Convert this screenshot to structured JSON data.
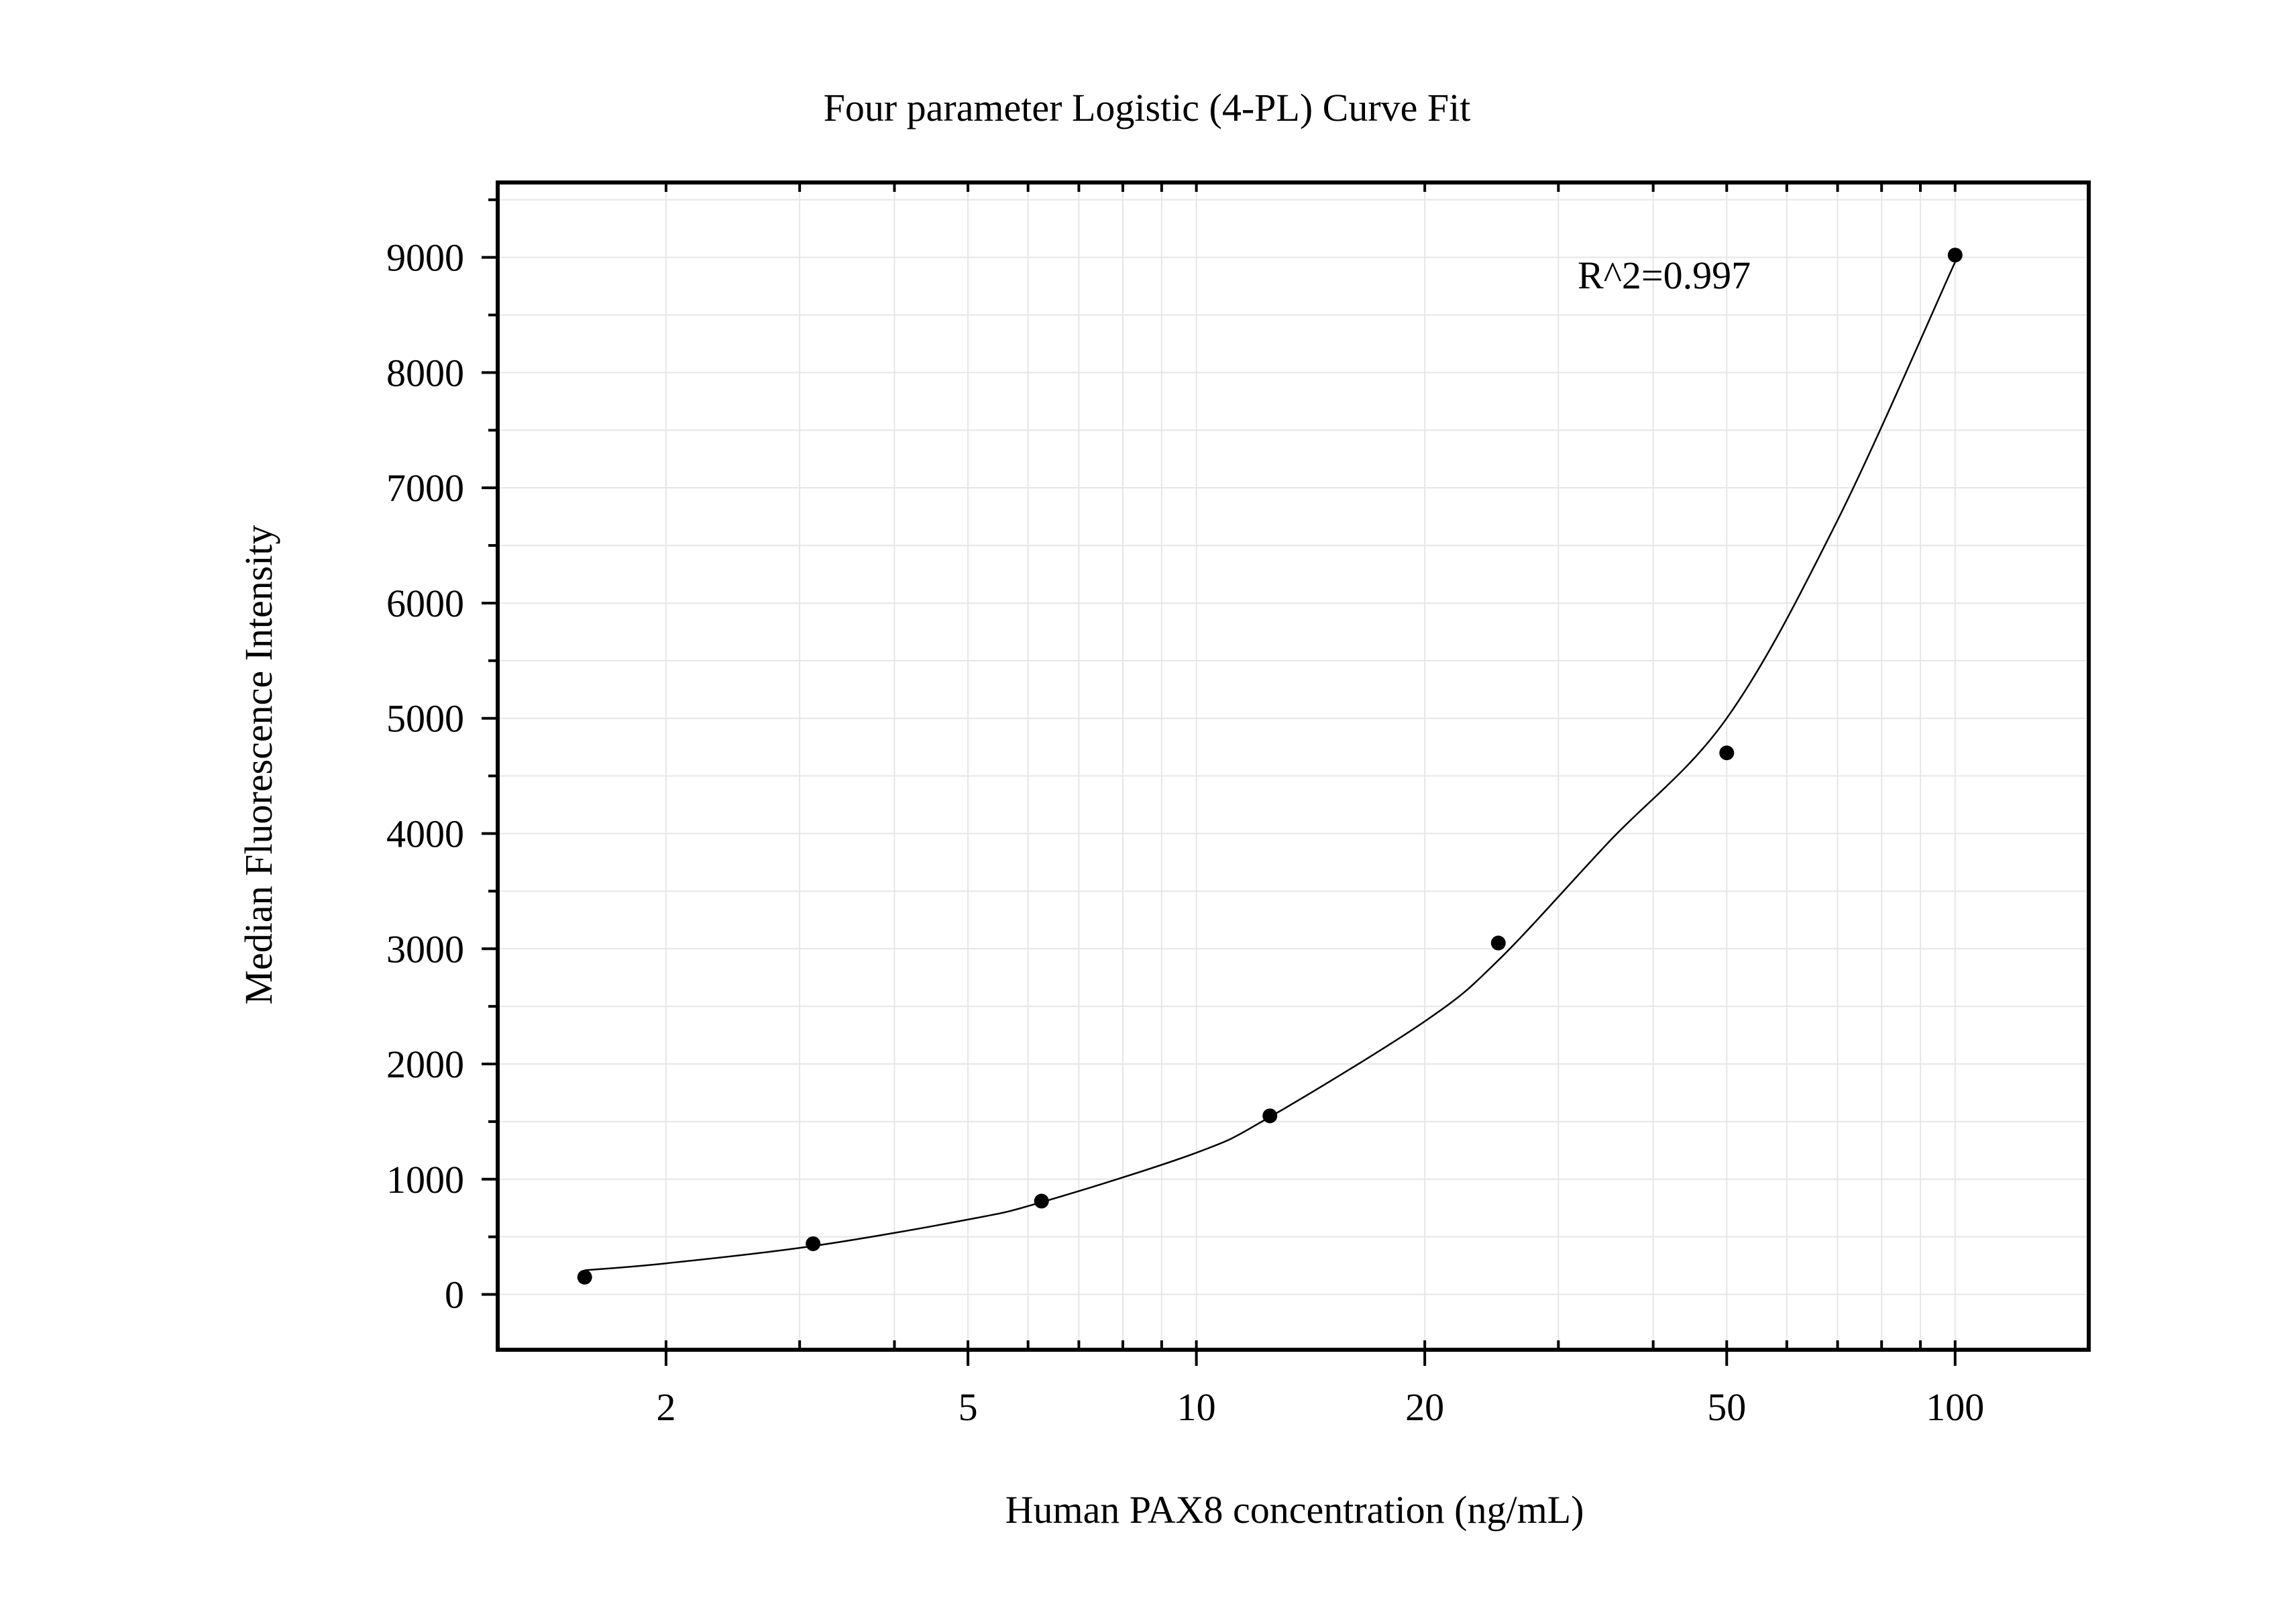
{
  "chart_data": {
    "type": "scatter",
    "title": "Four parameter Logistic (4-PL) Curve Fit",
    "xlabel": "Human PAX8 concentration (ng/mL)",
    "ylabel": "Median Fluorescence Intensity",
    "x_scale": "log",
    "xlim": [
      1.2,
      150
    ],
    "ylim": [
      -480,
      9650
    ],
    "x_ticks": [
      2,
      5,
      10,
      20,
      50,
      100
    ],
    "x_tick_labels": [
      "2",
      "5",
      "10",
      "20",
      "50",
      "100"
    ],
    "y_ticks": [
      0,
      1000,
      2000,
      3000,
      4000,
      5000,
      6000,
      7000,
      8000,
      9000
    ],
    "y_tick_labels": [
      "0",
      "1000",
      "2000",
      "3000",
      "4000",
      "5000",
      "6000",
      "7000",
      "8000",
      "9000"
    ],
    "grid": true,
    "annotation": "R^2=0.997",
    "series": [
      {
        "type": "scatter",
        "x": [
          1.5625,
          3.125,
          6.25,
          12.5,
          25,
          50,
          100
        ],
        "y": [
          150,
          440,
          810,
          1550,
          3050,
          4700,
          9020
        ]
      },
      {
        "type": "line",
        "x": [
          1.5625,
          2,
          3.125,
          5,
          6.25,
          10,
          12.5,
          20,
          25,
          35,
          50,
          70,
          100
        ],
        "y": [
          210,
          270,
          420,
          650,
          800,
          1230,
          1540,
          2370,
          2900,
          3930,
          5000,
          6720,
          8960
        ]
      }
    ],
    "colors": {
      "axis": "#000000",
      "grid": "#e6e6e6",
      "marker": "#000000",
      "curve": "#000000"
    }
  }
}
